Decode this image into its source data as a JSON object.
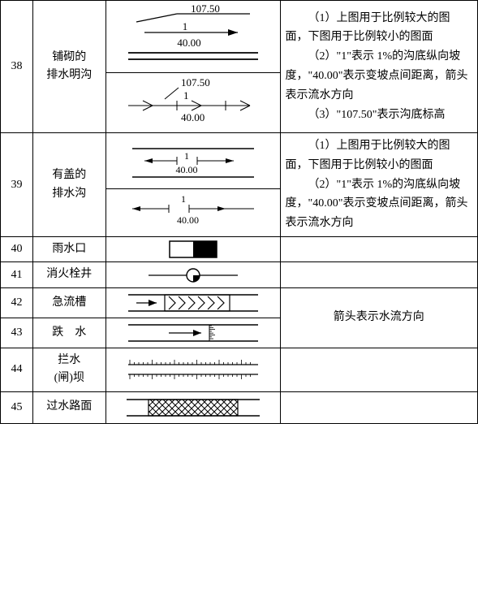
{
  "rows": [
    {
      "num": "38",
      "name": "铺砌的排水明沟",
      "symbols": [
        {
          "type": "open-ditch-large",
          "elev": "107.50",
          "slope": "1",
          "dist": "40.00"
        },
        {
          "type": "open-ditch-small",
          "elev": "107.50",
          "slope": "1",
          "dist": "40.00"
        }
      ],
      "desc": "（1）上图用于比例较大的图面，下图用于比例较小的图面\n（2）\"1\"表示 1%的沟底纵向坡度，\"40.00\"表示变坡点间距离，箭头表示流水方向\n（3）\"107.50\"表示沟底标高"
    },
    {
      "num": "39",
      "name": "有盖的排水沟",
      "symbols": [
        {
          "type": "covered-ditch-large",
          "slope": "1",
          "dist": "40.00"
        },
        {
          "type": "covered-ditch-small",
          "slope": "1",
          "dist": "40.00"
        }
      ],
      "desc": "（1）上图用于比例较大的图面，下图用于比例较小的图面\n（2）\"1\"表示 1%的沟底纵向坡度，\"40.00\"表示变坡点间距离，箭头表示流水方向"
    },
    {
      "num": "40",
      "name": "雨水口",
      "symbols": [
        {
          "type": "gully"
        }
      ],
      "desc": ""
    },
    {
      "num": "41",
      "name": "消火栓井",
      "symbols": [
        {
          "type": "hydrant"
        }
      ],
      "desc": ""
    },
    {
      "num": "42",
      "name": "急流槽",
      "symbols": [
        {
          "type": "chute"
        }
      ],
      "desc": ""
    },
    {
      "num": "43",
      "name": "跌　水",
      "symbols": [
        {
          "type": "drop"
        }
      ],
      "desc": ""
    },
    {
      "num": "44",
      "name": "拦水(闸)坝",
      "symbols": [
        {
          "type": "weir"
        }
      ],
      "desc": ""
    },
    {
      "num": "45",
      "name": "过水路面",
      "symbols": [
        {
          "type": "ford"
        }
      ],
      "desc": ""
    }
  ],
  "mergedDesc4243": "箭头表示水流方向",
  "colors": {
    "stroke": "#000000",
    "fill": "#000000",
    "bg": "#ffffff"
  },
  "font": {
    "family": "SimSun",
    "size_pt": 10.5
  }
}
